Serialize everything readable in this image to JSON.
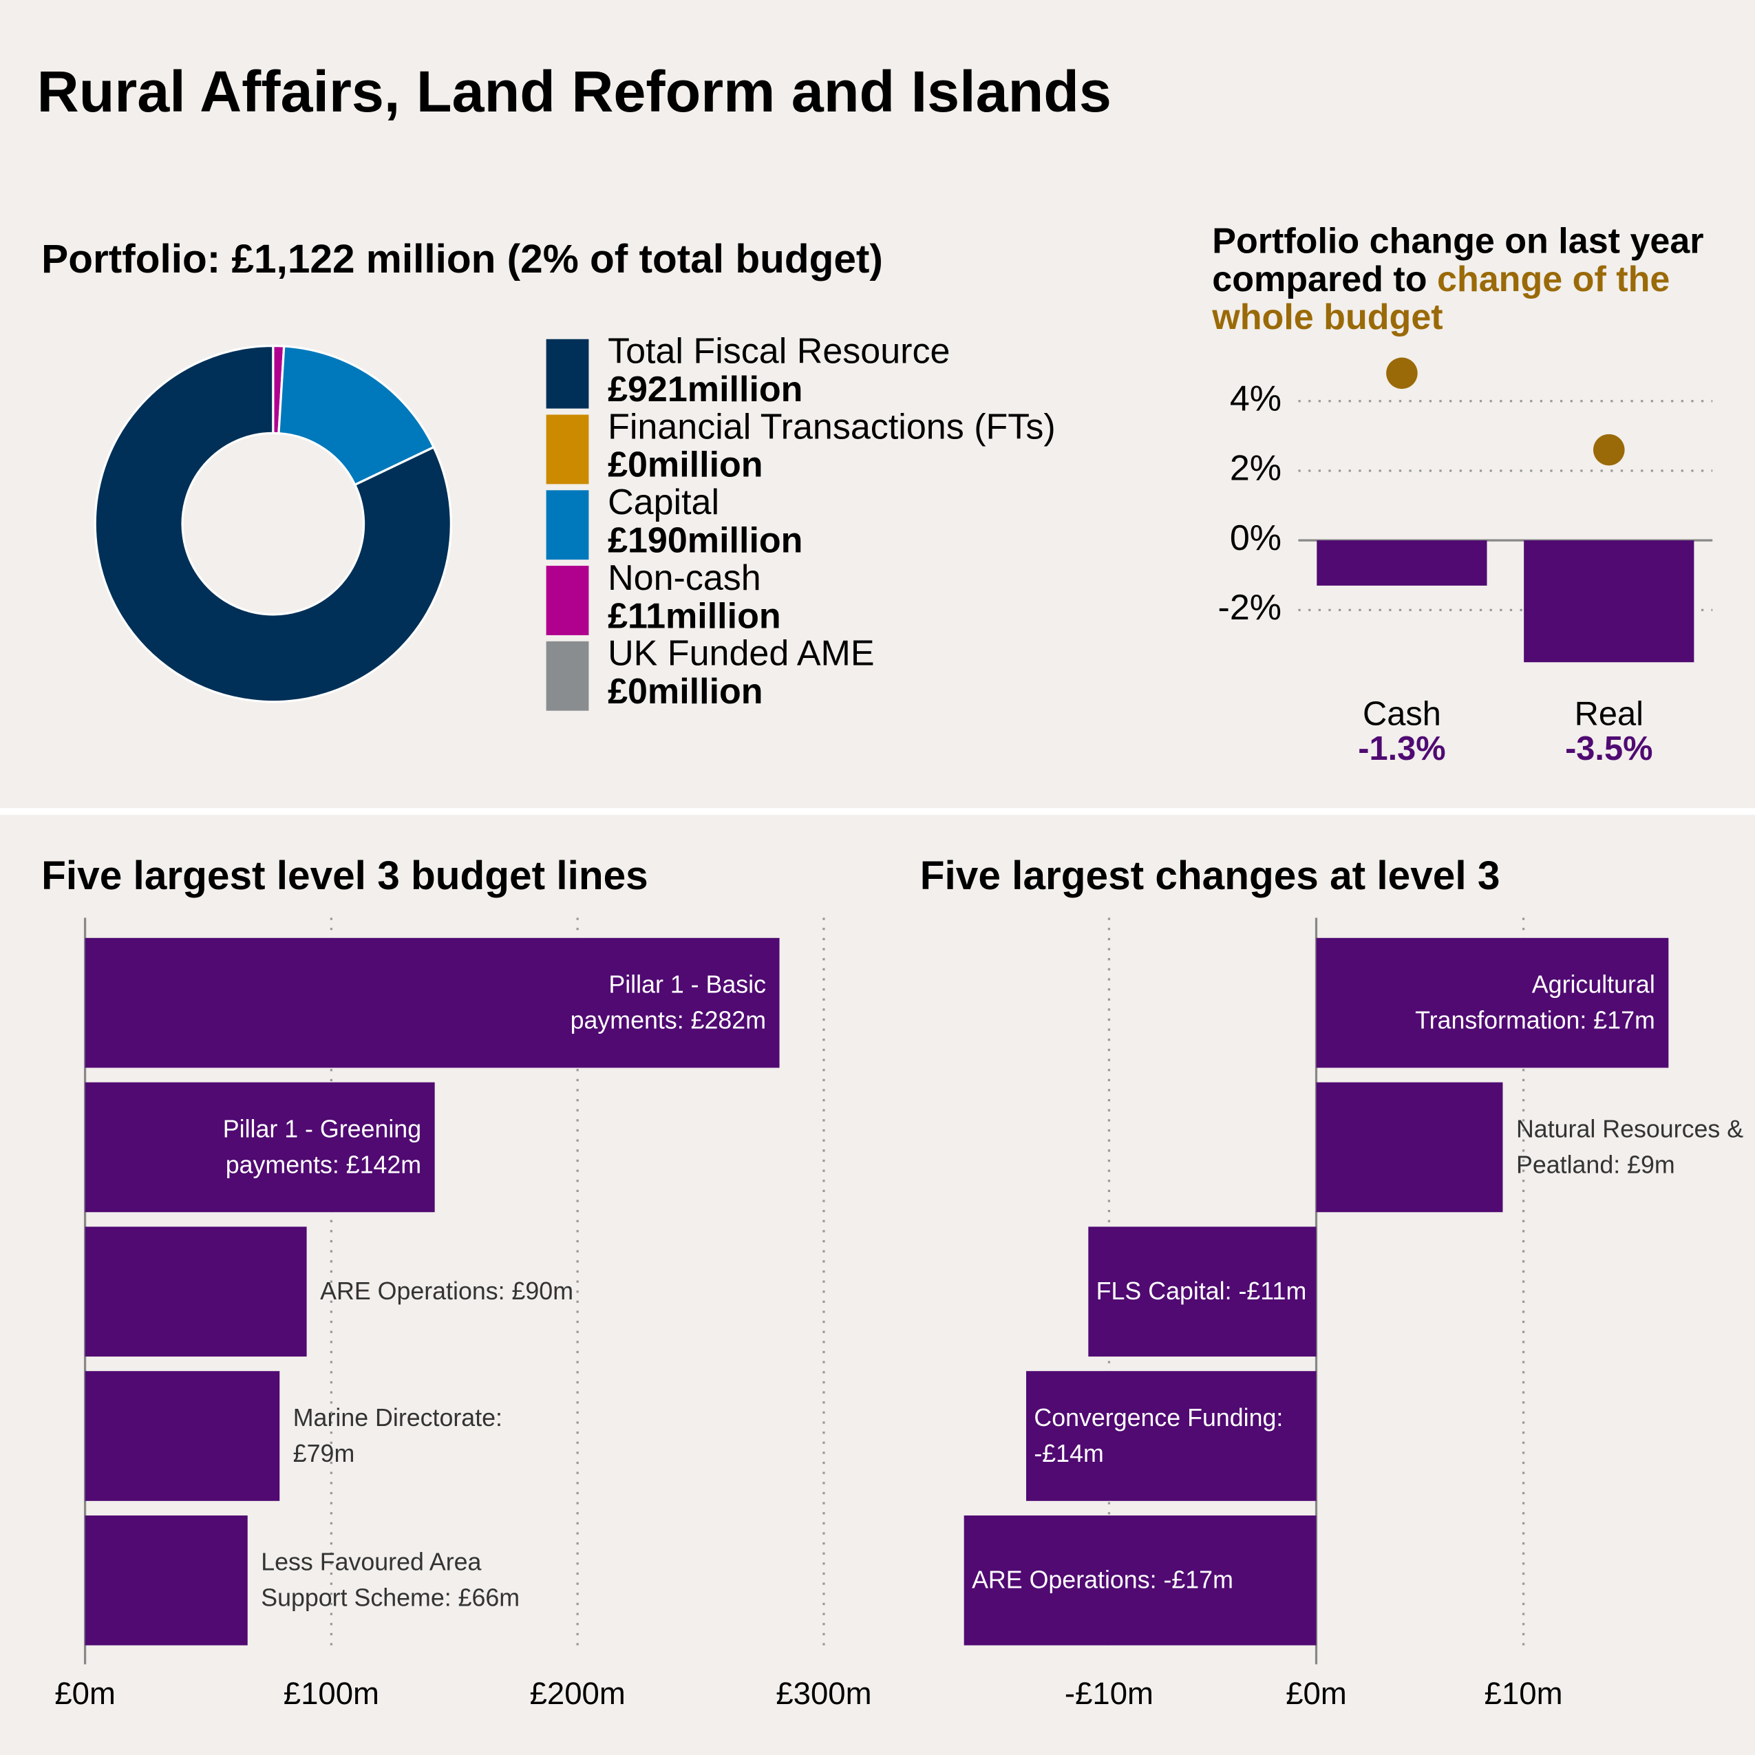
{
  "title": "Rural Affairs, Land Reform and Islands",
  "chart_data": [
    {
      "type": "donut",
      "title": "Portfolio: £1,122 million (2% of total budget)",
      "categories": [
        "Total Fiscal Resource",
        "Financial Transactions (FTs)",
        "Capital",
        "Non-cash",
        "UK Funded AME"
      ],
      "values": [
        921,
        0,
        190,
        11,
        0
      ],
      "value_labels": [
        "£921million",
        "£0million",
        "£190million",
        "£11million",
        "£0million"
      ],
      "colors": [
        "#003057",
        "#cc8a00",
        "#0079bc",
        "#b0008e",
        "#8a8d8f"
      ]
    },
    {
      "type": "bar-dot",
      "title": "Portfolio change on last year compared to",
      "comparison_label": "change of the whole budget",
      "categories": [
        "Cash",
        "Real"
      ],
      "series": [
        {
          "color": "#500a72",
          "values": [
            -1.3,
            -3.5
          ],
          "value_labels": [
            "-1.3%",
            "-3.5%"
          ]
        },
        {
          "color": "#9a6a08",
          "values": [
            4.8,
            2.6
          ]
        }
      ],
      "ylim": [
        -3.8,
        5.2
      ],
      "yticks": [
        {
          "value": -2,
          "label": "-2%"
        },
        {
          "value": 0,
          "label": "0%"
        },
        {
          "value": 2,
          "label": "2%"
        },
        {
          "value": 4,
          "label": "4%"
        }
      ]
    },
    {
      "type": "hbar",
      "title": "Five largest level 3 budget lines",
      "categories": [
        "Pillar 1 - Basic\npayments: £282m",
        "Pillar 1 - Greening\npayments: £142m",
        "ARE Operations: £90m",
        "Marine Directorate:\n£79m",
        "Less Favoured Area\nSupport Scheme: £66m"
      ],
      "values": [
        282,
        142,
        90,
        79,
        66
      ],
      "color": "#500a72",
      "xlim": [
        0,
        300
      ],
      "xticks": [
        {
          "value": 0,
          "label": "£0m"
        },
        {
          "value": 100,
          "label": "£100m"
        },
        {
          "value": 200,
          "label": "£200m"
        },
        {
          "value": 300,
          "label": "£300m"
        }
      ]
    },
    {
      "type": "hbar",
      "title": "Five largest changes at level 3",
      "categories": [
        "Agricultural\nTransformation: £17m",
        "Natural Resources &\nPeatland: £9m",
        "FLS Capital: -£11m",
        "Convergence Funding:\n-£14m",
        "ARE Operations: -£17m"
      ],
      "values": [
        17,
        9,
        -11,
        -14,
        -17
      ],
      "color": "#500a72",
      "xlim": [
        -19.5,
        19.5
      ],
      "xticks": [
        {
          "value": -10,
          "label": "-£10m"
        },
        {
          "value": 0,
          "label": "£0m"
        },
        {
          "value": 10,
          "label": "£10m"
        }
      ]
    }
  ]
}
